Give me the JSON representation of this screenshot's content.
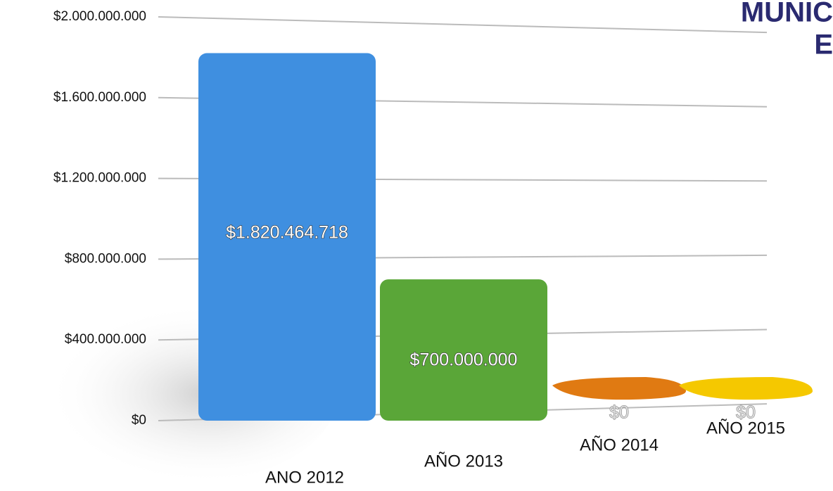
{
  "chart_data": {
    "type": "bar",
    "title_lines": [
      "MUNIC",
      "E"
    ],
    "categories": [
      "ANO 2012",
      "AÑO 2013",
      "AÑO 2014",
      "AÑO 2015"
    ],
    "values": [
      1820464718,
      700000000,
      0,
      0
    ],
    "value_labels": [
      "$1.820.464.718",
      "$700.000.000",
      "$0",
      "$0"
    ],
    "colors": [
      "#3f8fe0",
      "#5aa638",
      "#e07a12",
      "#f5c800"
    ],
    "ylim": [
      0,
      2000000000
    ],
    "yticks": [
      {
        "value": 0,
        "label": "$0"
      },
      {
        "value": 400000000,
        "label": "$400.000.000"
      },
      {
        "value": 800000000,
        "label": "$800.000.000"
      },
      {
        "value": 1200000000,
        "label": "$1.200.000.000"
      },
      {
        "value": 1600000000,
        "label": "$1.600.000.000"
      },
      {
        "value": 2000000000,
        "label": "$2.000.000.000"
      }
    ],
    "grid": true
  }
}
